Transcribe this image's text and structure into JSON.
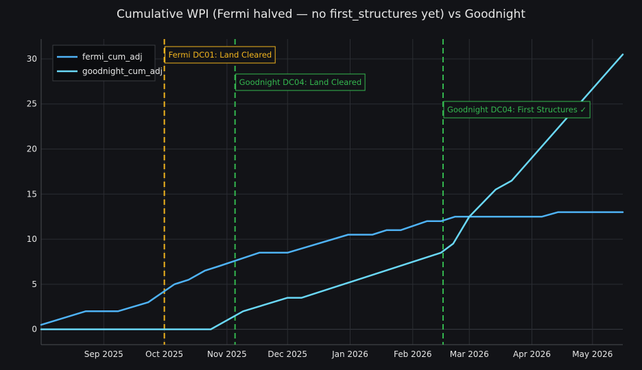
{
  "chart_data": {
    "type": "line",
    "title": "Cumulative WPI (Fermi halved — no first_structures yet) vs Goodnight",
    "xlabel": "",
    "ylabel": "",
    "x_range": [
      "2025-08-01",
      "2026-05-16"
    ],
    "ylim": [
      -1.7,
      32.2
    ],
    "y_ticks": [
      0,
      5,
      10,
      15,
      20,
      25,
      30
    ],
    "x_ticks": [
      {
        "date": "2025-09-01",
        "label": "Sep 2025"
      },
      {
        "date": "2025-10-01",
        "label": "Oct 2025"
      },
      {
        "date": "2025-11-01",
        "label": "Nov 2025"
      },
      {
        "date": "2025-12-01",
        "label": "Dec 2025"
      },
      {
        "date": "2026-01-01",
        "label": "Jan 2026"
      },
      {
        "date": "2026-02-01",
        "label": "Feb 2026"
      },
      {
        "date": "2026-03-01",
        "label": "Mar 2026"
      },
      {
        "date": "2026-04-01",
        "label": "Apr 2026"
      },
      {
        "date": "2026-05-01",
        "label": "May 2026"
      }
    ],
    "grid": true,
    "legend_position": "top-left",
    "series": [
      {
        "name": "fermi_cum_adj",
        "color": "#4fb3f6",
        "points": [
          [
            "2025-08-01",
            0.5
          ],
          [
            "2025-08-23",
            2.0
          ],
          [
            "2025-09-08",
            2.0
          ],
          [
            "2025-09-23",
            3.0
          ],
          [
            "2025-10-06",
            5.0
          ],
          [
            "2025-10-13",
            5.5
          ],
          [
            "2025-10-21",
            6.5
          ],
          [
            "2025-10-28",
            7.0
          ],
          [
            "2025-11-17",
            8.5
          ],
          [
            "2025-12-01",
            8.5
          ],
          [
            "2025-12-31",
            10.5
          ],
          [
            "2026-01-12",
            10.5
          ],
          [
            "2026-01-19",
            11.0
          ],
          [
            "2026-01-26",
            11.0
          ],
          [
            "2026-02-08",
            12.0
          ],
          [
            "2026-02-15",
            12.0
          ],
          [
            "2026-02-22",
            12.5
          ],
          [
            "2026-04-06",
            12.5
          ],
          [
            "2026-04-14",
            13.0
          ],
          [
            "2026-05-16",
            13.0
          ]
        ]
      },
      {
        "name": "goodnight_cum_adj",
        "color": "#6ad8f7",
        "points": [
          [
            "2025-08-01",
            0.0
          ],
          [
            "2025-10-24",
            0.0
          ],
          [
            "2025-11-09",
            2.0
          ],
          [
            "2025-12-01",
            3.5
          ],
          [
            "2025-12-08",
            3.5
          ],
          [
            "2026-02-15",
            8.5
          ],
          [
            "2026-02-21",
            9.5
          ],
          [
            "2026-03-01",
            12.5
          ],
          [
            "2026-03-14",
            15.5
          ],
          [
            "2026-03-22",
            16.5
          ],
          [
            "2026-05-16",
            30.5
          ]
        ]
      }
    ],
    "vlines": [
      {
        "date": "2025-10-01",
        "color": "#f2b51e",
        "label": "Fermi DC01: Land Cleared"
      },
      {
        "date": "2025-11-05",
        "color": "#34b84f",
        "label": "Goodnight DC04: Land Cleared"
      },
      {
        "date": "2026-02-16",
        "color": "#34b84f",
        "label": "Goodnight DC04: First Structures ✓"
      }
    ]
  },
  "colors": {
    "background": "#121317",
    "grid": "#2b2d33",
    "axis_line": "#4a4c52",
    "legend_bg": "#0b0c0f",
    "legend_border": "#3a3c42"
  }
}
